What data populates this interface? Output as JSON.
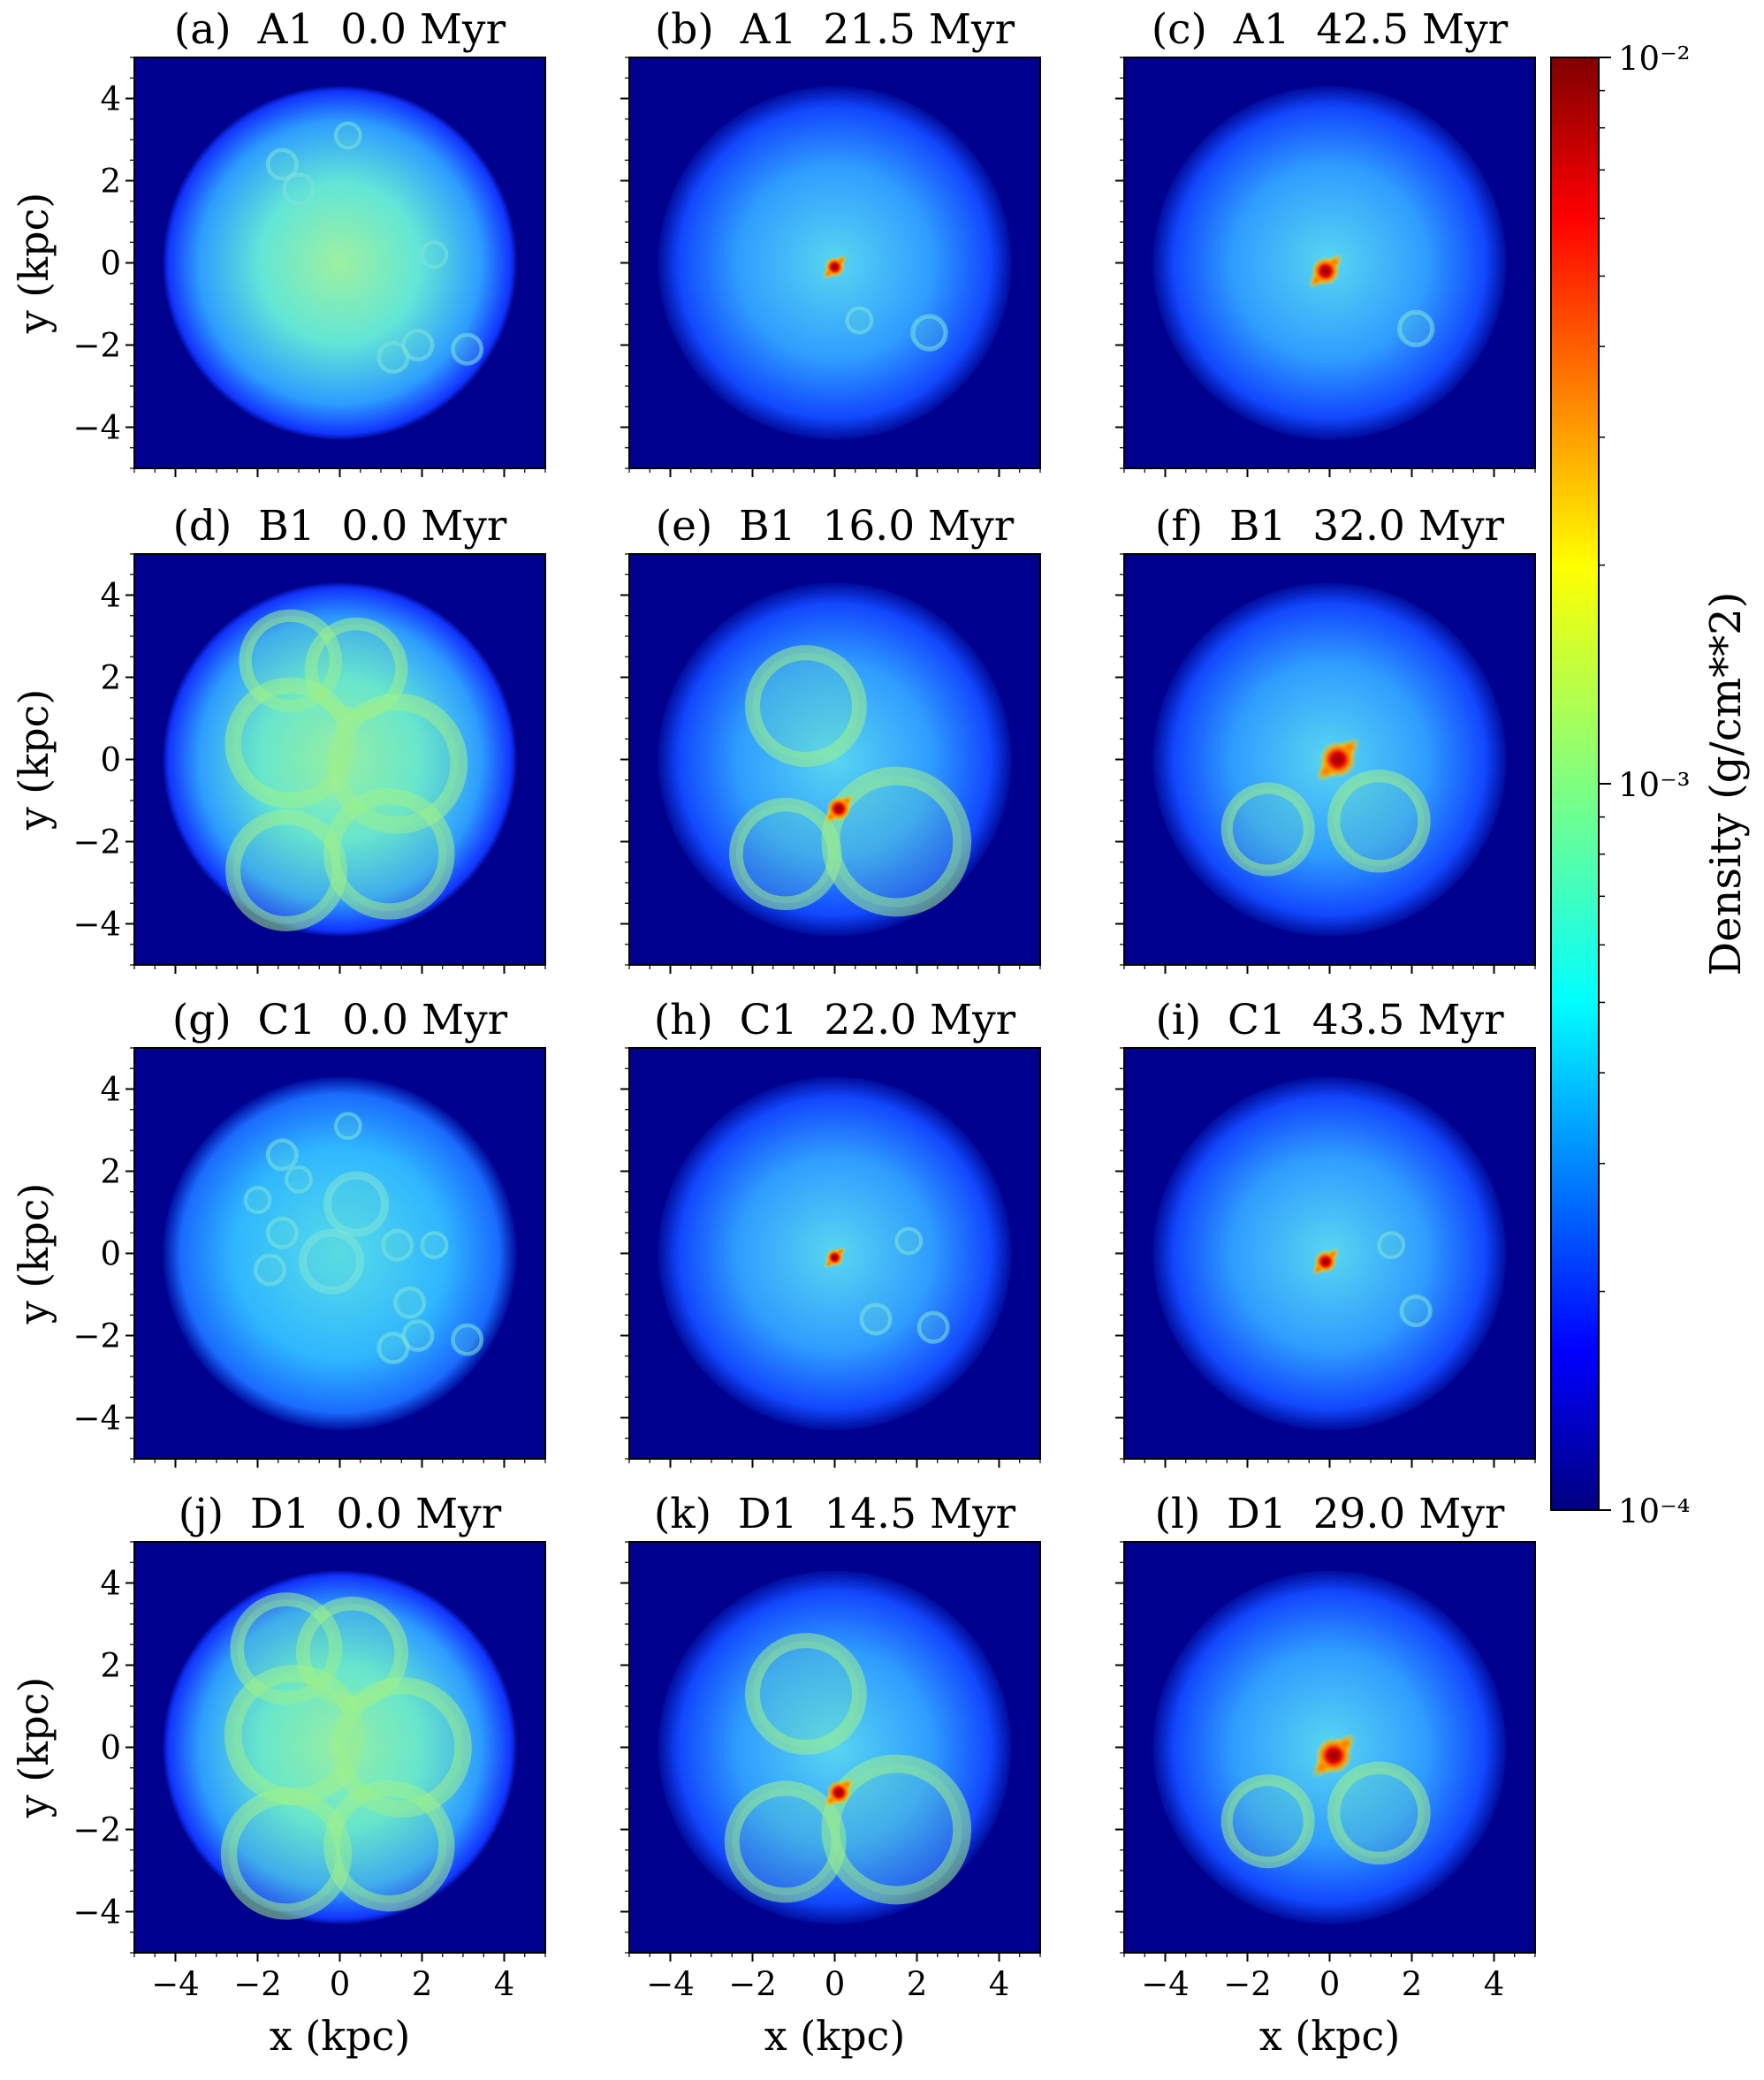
{
  "chart_data": {
    "type": "heatmap",
    "colormap": "jet",
    "colorbar": {
      "label": "Density (g/cm**2)",
      "scale": "log",
      "range": [
        0.0001,
        0.01
      ],
      "ticks": [
        {
          "value": 0.01,
          "label": "10⁻²"
        },
        {
          "value": 0.001,
          "label": "10⁻³"
        },
        {
          "value": 0.0001,
          "label": "10⁻⁴"
        }
      ]
    },
    "xlabel": "x (kpc)",
    "ylabel": "y (kpc)",
    "xlim": [
      -5,
      5
    ],
    "ylim": [
      -5,
      5
    ],
    "xticks": [
      -4,
      -2,
      0,
      2,
      4
    ],
    "yticks": [
      -4,
      -2,
      0,
      2,
      4
    ],
    "panels": [
      {
        "label": "(a)",
        "model": "A1",
        "time": "0.0 Myr",
        "title": "(a)  A1  0.0 Myr",
        "disk_radius_kpc": 4.3,
        "cores": [],
        "rings": [
          [
            0.2,
            3.1,
            0.3
          ],
          [
            -1.4,
            2.4,
            0.35
          ],
          [
            -1.0,
            1.8,
            0.35
          ],
          [
            2.3,
            0.2,
            0.3
          ],
          [
            1.3,
            -2.3,
            0.35
          ],
          [
            1.9,
            -2.0,
            0.35
          ],
          [
            3.1,
            -2.1,
            0.35
          ]
        ]
      },
      {
        "label": "(b)",
        "model": "A1",
        "time": "21.5 Myr",
        "title": "(b)  A1  21.5 Myr",
        "disk_radius_kpc": 4.3,
        "cores": [
          [
            0.0,
            -0.1,
            0.25
          ]
        ],
        "rings": [
          [
            2.3,
            -1.7,
            0.4
          ],
          [
            0.6,
            -1.4,
            0.3
          ]
        ]
      },
      {
        "label": "(c)",
        "model": "A1",
        "time": "42.5 Myr",
        "title": "(c)  A1  42.5 Myr",
        "disk_radius_kpc": 4.3,
        "cores": [
          [
            -0.1,
            -0.2,
            0.35
          ]
        ],
        "rings": [
          [
            2.1,
            -1.6,
            0.4
          ]
        ]
      },
      {
        "label": "(d)",
        "model": "B1",
        "time": "0.0 Myr",
        "title": "(d)  B1  0.0 Myr",
        "disk_radius_kpc": 4.3,
        "cores": [],
        "rings": [
          [
            -1.2,
            2.4,
            1.1
          ],
          [
            0.4,
            2.2,
            1.1
          ],
          [
            -1.2,
            0.4,
            1.4
          ],
          [
            1.4,
            -0.1,
            1.5
          ],
          [
            -1.3,
            -2.7,
            1.3
          ],
          [
            1.2,
            -2.3,
            1.4
          ]
        ]
      },
      {
        "label": "(e)",
        "model": "B1",
        "time": "16.0 Myr",
        "title": "(e)  B1  16.0 Myr",
        "disk_radius_kpc": 4.3,
        "cores": [
          [
            0.1,
            -1.2,
            0.3
          ]
        ],
        "rings": [
          [
            -1.2,
            -2.3,
            1.2
          ],
          [
            1.5,
            -2.0,
            1.6
          ],
          [
            -0.7,
            1.3,
            1.3
          ]
        ]
      },
      {
        "label": "(f)",
        "model": "B1",
        "time": "32.0 Myr",
        "title": "(f)  B1  32.0 Myr",
        "disk_radius_kpc": 4.3,
        "cores": [
          [
            0.2,
            0.0,
            0.45
          ]
        ],
        "rings": [
          [
            1.2,
            -1.5,
            1.1
          ],
          [
            -1.5,
            -1.7,
            1.0
          ]
        ]
      },
      {
        "label": "(g)",
        "model": "C1",
        "time": "0.0 Myr",
        "title": "(g)  C1  0.0 Myr",
        "disk_radius_kpc": 4.3,
        "cores": [],
        "rings": [
          [
            0.2,
            3.1,
            0.3
          ],
          [
            -1.4,
            2.4,
            0.35
          ],
          [
            -1.0,
            1.8,
            0.3
          ],
          [
            -2.0,
            1.3,
            0.3
          ],
          [
            -1.4,
            0.5,
            0.35
          ],
          [
            0.4,
            1.2,
            0.7
          ],
          [
            -0.2,
            -0.2,
            0.7
          ],
          [
            -1.7,
            -0.4,
            0.35
          ],
          [
            1.4,
            0.2,
            0.35
          ],
          [
            2.3,
            0.2,
            0.3
          ],
          [
            1.7,
            -1.2,
            0.35
          ],
          [
            1.3,
            -2.3,
            0.35
          ],
          [
            1.9,
            -2.0,
            0.35
          ],
          [
            3.1,
            -2.1,
            0.35
          ]
        ]
      },
      {
        "label": "(h)",
        "model": "C1",
        "time": "22.0 Myr",
        "title": "(h)  C1  22.0 Myr",
        "disk_radius_kpc": 4.3,
        "cores": [
          [
            0.0,
            -0.1,
            0.22
          ]
        ],
        "rings": [
          [
            2.4,
            -1.8,
            0.35
          ],
          [
            1.0,
            -1.6,
            0.35
          ],
          [
            1.8,
            0.3,
            0.3
          ]
        ]
      },
      {
        "label": "(i)",
        "model": "C1",
        "time": "43.5 Myr",
        "title": "(i)  C1  43.5 Myr",
        "disk_radius_kpc": 4.3,
        "cores": [
          [
            -0.1,
            -0.2,
            0.28
          ]
        ],
        "rings": [
          [
            2.1,
            -1.4,
            0.35
          ],
          [
            1.5,
            0.2,
            0.3
          ]
        ]
      },
      {
        "label": "(j)",
        "model": "D1",
        "time": "0.0 Myr",
        "title": "(j)  D1  0.0 Myr",
        "disk_radius_kpc": 4.3,
        "cores": [],
        "rings": [
          [
            -1.3,
            2.4,
            1.2
          ],
          [
            0.3,
            2.3,
            1.2
          ],
          [
            -1.1,
            0.3,
            1.5
          ],
          [
            1.5,
            0.0,
            1.5
          ],
          [
            -1.3,
            -2.6,
            1.4
          ],
          [
            1.2,
            -2.4,
            1.4
          ]
        ]
      },
      {
        "label": "(k)",
        "model": "D1",
        "time": "14.5 Myr",
        "title": "(k)  D1  14.5 Myr",
        "disk_radius_kpc": 4.3,
        "cores": [
          [
            0.1,
            -1.1,
            0.3
          ]
        ],
        "rings": [
          [
            -1.2,
            -2.3,
            1.3
          ],
          [
            1.5,
            -2.0,
            1.6
          ],
          [
            -0.7,
            1.3,
            1.3
          ]
        ]
      },
      {
        "label": "(l)",
        "model": "D1",
        "time": "29.0 Myr",
        "title": "(l)  D1  29.0 Myr",
        "disk_radius_kpc": 4.3,
        "cores": [
          [
            0.1,
            -0.2,
            0.45
          ]
        ],
        "rings": [
          [
            1.2,
            -1.6,
            1.1
          ],
          [
            -1.5,
            -1.8,
            1.0
          ]
        ]
      }
    ]
  }
}
